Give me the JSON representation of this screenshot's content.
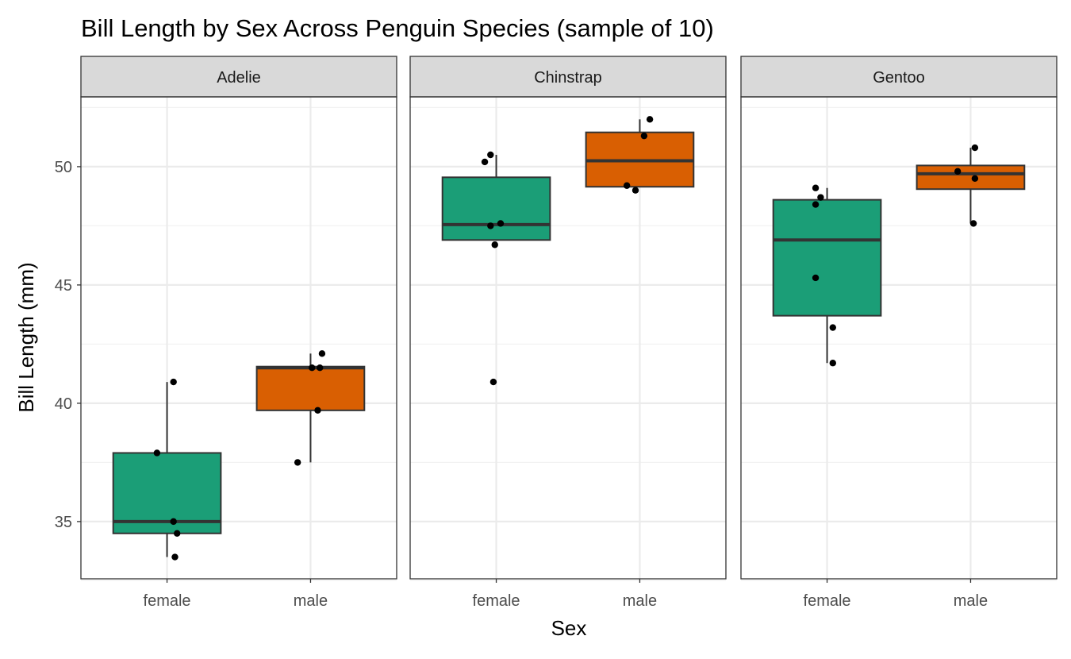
{
  "chart_data": {
    "type": "box",
    "title": "Bill Length by Sex Across Penguin Species (sample of 10)",
    "xlabel": "Sex",
    "ylabel": "Bill Length (mm)",
    "ylim": [
      32.58,
      52.95
    ],
    "yticks": [
      35,
      40,
      45,
      50
    ],
    "categories": [
      "female",
      "male"
    ],
    "colors": {
      "female": "#1B9E77",
      "male": "#D95F02"
    },
    "grid": true,
    "legend": "none",
    "panels": [
      {
        "name": "Adelie",
        "boxes": [
          {
            "sex": "female",
            "lower": 33.5,
            "q1": 34.5,
            "median": 35.0,
            "q3": 37.9,
            "upper": 40.9,
            "points": [
              [
                0.045,
                40.9
              ],
              [
                -0.07,
                37.9
              ],
              [
                0.045,
                35.0
              ],
              [
                0.07,
                34.5
              ],
              [
                0.055,
                33.5
              ]
            ]
          },
          {
            "sex": "male",
            "lower": 37.5,
            "q1": 39.7,
            "median": 41.5,
            "q3": 41.55,
            "upper": 42.1,
            "points": [
              [
                0.08,
                42.1
              ],
              [
                0.01,
                41.5
              ],
              [
                0.065,
                41.5
              ],
              [
                0.05,
                39.7
              ],
              [
                -0.09,
                37.5
              ]
            ]
          }
        ]
      },
      {
        "name": "Chinstrap",
        "boxes": [
          {
            "sex": "female",
            "lower": 46.9,
            "q1": 46.9,
            "median": 47.55,
            "q3": 49.55,
            "upper": 50.5,
            "points": [
              [
                -0.04,
                50.5
              ],
              [
                -0.08,
                50.2
              ],
              [
                0.03,
                47.6
              ],
              [
                -0.04,
                47.5
              ],
              [
                -0.01,
                46.7
              ],
              [
                -0.02,
                40.9
              ]
            ]
          },
          {
            "sex": "male",
            "lower": 49.15,
            "q1": 49.15,
            "median": 50.25,
            "q3": 51.45,
            "upper": 52.0,
            "points": [
              [
                0.07,
                52.0
              ],
              [
                0.03,
                51.3
              ],
              [
                -0.09,
                49.2
              ],
              [
                -0.03,
                49.0
              ]
            ]
          }
        ]
      },
      {
        "name": "Gentoo",
        "boxes": [
          {
            "sex": "female",
            "lower": 41.7,
            "q1": 43.7,
            "median": 46.9,
            "q3": 48.6,
            "upper": 49.1,
            "points": [
              [
                -0.08,
                49.1
              ],
              [
                -0.045,
                48.7
              ],
              [
                -0.08,
                48.4
              ],
              [
                -0.08,
                45.3
              ],
              [
                0.04,
                43.2
              ],
              [
                0.04,
                41.7
              ]
            ]
          },
          {
            "sex": "male",
            "lower": 47.6,
            "q1": 49.05,
            "median": 49.7,
            "q3": 50.05,
            "upper": 50.8,
            "points": [
              [
                0.03,
                50.8
              ],
              [
                -0.09,
                49.8
              ],
              [
                0.03,
                49.5
              ],
              [
                0.02,
                47.6
              ]
            ]
          }
        ]
      }
    ]
  }
}
